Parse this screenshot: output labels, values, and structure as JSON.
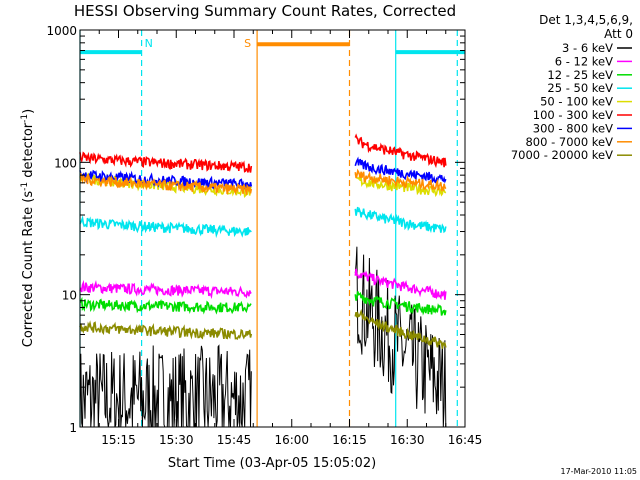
{
  "chart_data": {
    "type": "line",
    "title": "HESSI Observing Summary Count Rates, Corrected",
    "xlabel": "Start Time (03-Apr-05 15:05:02)",
    "ylabel_main": "Corrected Count Rate (s",
    "ylabel_sup1": "-1",
    "ylabel_mid": " detector",
    "ylabel_sup2": "-1",
    "ylabel_end": ")",
    "x_range_minutes": [
      0,
      100
    ],
    "y_scale": "log",
    "ylim": [
      1,
      1000
    ],
    "x_ticks": [
      {
        "minute": 10,
        "label": "15:15"
      },
      {
        "minute": 25,
        "label": "15:30"
      },
      {
        "minute": 40,
        "label": "15:45"
      },
      {
        "minute": 55,
        "label": "16:00"
      },
      {
        "minute": 70,
        "label": "16:15"
      },
      {
        "minute": 85,
        "label": "16:30"
      },
      {
        "minute": 100,
        "label": "16:45"
      }
    ],
    "y_ticks": [
      {
        "value": 1,
        "label": "1"
      },
      {
        "value": 10,
        "label": "10"
      },
      {
        "value": 100,
        "label": "100"
      },
      {
        "value": 1000,
        "label": "1000"
      }
    ],
    "legend_header": [
      "Det 1,3,4,5,6,9,",
      "Att 0"
    ],
    "legend_position": "top-right outside",
    "series": [
      {
        "name": "3 - 6 keV",
        "color": "#000000",
        "segments": [
          {
            "x": [
              0,
              44.5
            ],
            "y0": 1.6,
            "y1": 1.6,
            "noise": "wide"
          },
          {
            "x": [
              71.5,
              95
            ],
            "y0": 12,
            "y1": 2.0,
            "noise": "wide"
          }
        ]
      },
      {
        "name": "6 - 12 keV",
        "color": "#ff00ff",
        "segments": [
          {
            "x": [
              0,
              44.5
            ],
            "y0": 11.5,
            "y1": 10.5
          },
          {
            "x": [
              71.5,
              95
            ],
            "y0": 15,
            "y1": 10
          }
        ]
      },
      {
        "name": "12 - 25 keV",
        "color": "#00dd00",
        "segments": [
          {
            "x": [
              0,
              44.5
            ],
            "y0": 8.5,
            "y1": 8.0
          },
          {
            "x": [
              71.5,
              95
            ],
            "y0": 10,
            "y1": 7.5
          }
        ]
      },
      {
        "name": "25 - 50 keV",
        "color": "#00e5ee",
        "segments": [
          {
            "x": [
              0,
              44.5
            ],
            "y0": 36,
            "y1": 30
          },
          {
            "x": [
              71.5,
              95
            ],
            "y0": 44,
            "y1": 31
          }
        ]
      },
      {
        "name": "50 - 100 keV",
        "color": "#dddd00",
        "segments": [
          {
            "x": [
              0,
              44.5
            ],
            "y0": 78,
            "y1": 60
          },
          {
            "x": [
              71.5,
              95
            ],
            "y0": 75,
            "y1": 60
          }
        ]
      },
      {
        "name": "100 - 300 keV",
        "color": "#ff0000",
        "segments": [
          {
            "x": [
              0,
              44.5
            ],
            "y0": 110,
            "y1": 92
          },
          {
            "x": [
              71.5,
              95
            ],
            "y0": 150,
            "y1": 100
          }
        ]
      },
      {
        "name": "300 - 800 keV",
        "color": "#0000ff",
        "segments": [
          {
            "x": [
              0,
              44.5
            ],
            "y0": 82,
            "y1": 68
          },
          {
            "x": [
              71.5,
              95
            ],
            "y0": 100,
            "y1": 75
          }
        ]
      },
      {
        "name": "800 - 7000 keV",
        "color": "#ff8c00",
        "segments": [
          {
            "x": [
              0,
              44.5
            ],
            "y0": 76,
            "y1": 62
          },
          {
            "x": [
              71.5,
              95
            ],
            "y0": 82,
            "y1": 66
          }
        ]
      },
      {
        "name": "7000 - 20000 keV",
        "color": "#8b8b00",
        "segments": [
          {
            "x": [
              0,
              44.5
            ],
            "y0": 5.8,
            "y1": 5.0
          },
          {
            "x": [
              71.5,
              95
            ],
            "y0": 7.5,
            "y1": 4.2
          }
        ]
      }
    ],
    "annotations": [
      {
        "label": "N",
        "color": "#00e5ee",
        "kind": "night",
        "bar": [
          [
            0,
            16
          ],
          [
            82,
            100
          ]
        ],
        "bar_value": 680,
        "verticals": [
          {
            "x": 0,
            "style": "solid"
          },
          {
            "x": 16,
            "style": "dashed"
          },
          {
            "x": 82,
            "style": "solid"
          },
          {
            "x": 98,
            "style": "dashed"
          }
        ]
      },
      {
        "label": "S",
        "color": "#ff8c00",
        "kind": "saa",
        "bar": [
          [
            46,
            70
          ]
        ],
        "bar_value": 780,
        "verticals": [
          {
            "x": 46,
            "style": "solid"
          },
          {
            "x": 70,
            "style": "dashed"
          }
        ]
      }
    ],
    "timestamp": "17-Mar-2010 11:05"
  }
}
